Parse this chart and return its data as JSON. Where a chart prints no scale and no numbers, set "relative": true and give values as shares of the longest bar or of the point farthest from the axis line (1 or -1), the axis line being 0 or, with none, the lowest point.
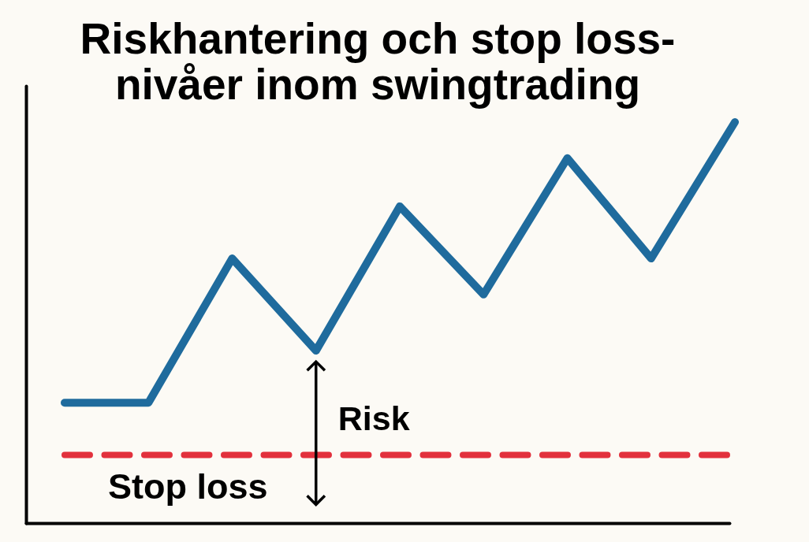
{
  "chart_data": {
    "type": "line",
    "title": "Riskhantering och stop loss-\nnivåer inom swingtrading",
    "categories": [
      null,
      null,
      null,
      null,
      null,
      null,
      null,
      null,
      null
    ],
    "series": [
      {
        "color": "#1f6b9d",
        "values": [
          0.3,
          0.3,
          0.66,
          0.43,
          0.79,
          0.57,
          0.91,
          0.66,
          1.0
        ]
      }
    ],
    "relative": true,
    "ref_lines": [
      {
        "axis": "y",
        "value": 0.17,
        "label": "Stop loss",
        "color": "#e2313d",
        "line_style": "dashed"
      }
    ],
    "annotations": [
      "Risk"
    ],
    "tick_labels": false
  }
}
